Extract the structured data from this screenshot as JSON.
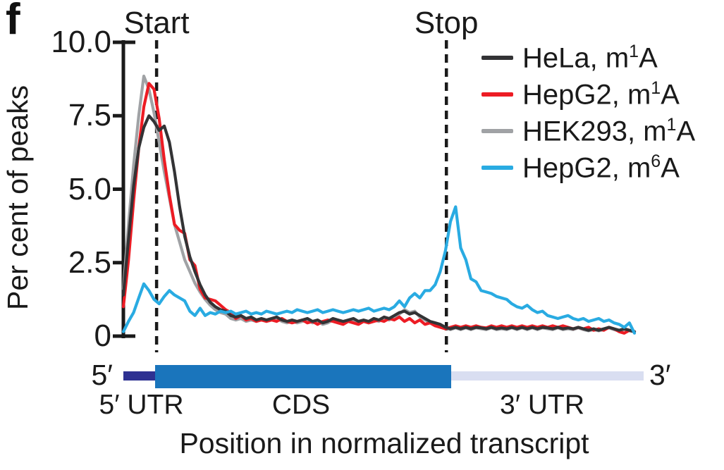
{
  "panel_label": "f",
  "chart_data": {
    "type": "line",
    "title": "",
    "xlabel": "Position in normalized transcript",
    "ylabel": "Per cent of peaks",
    "ylim": [
      0,
      10
    ],
    "yticks": [
      "10.0",
      "7.5",
      "5.0",
      "2.5",
      "0"
    ],
    "ytick_values": [
      10,
      7.5,
      5,
      2.5,
      0
    ],
    "x_start": 0,
    "x_end": 100,
    "grid": false,
    "legend_position": "top-right",
    "axis_color": "#1a1a1a",
    "annotations": [
      {
        "label": "Start",
        "x": 6.5
      },
      {
        "label": "Stop",
        "x": 63.2
      }
    ],
    "legend": [
      {
        "prefix": "HeLa, m",
        "sup": "1",
        "suffix": "A",
        "color": "#333335"
      },
      {
        "prefix": "HepG2, m",
        "sup": "1",
        "suffix": "A",
        "color": "#ed1c24"
      },
      {
        "prefix": "HEK293, m",
        "sup": "1",
        "suffix": "A",
        "color": "#a0a2a5"
      },
      {
        "prefix": "HepG2, m",
        "sup": "6",
        "suffix": "A",
        "color": "#29abe2"
      }
    ],
    "series": [
      {
        "name": "HeLa, m1A",
        "color": "#333335",
        "values": [
          1.4,
          3.3,
          5.1,
          6.4,
          7.1,
          7.5,
          7.3,
          7.0,
          7.15,
          6.6,
          5.6,
          4.4,
          3.4,
          2.7,
          2.2,
          1.75,
          1.4,
          1.15,
          1.0,
          0.9,
          0.85,
          0.7,
          0.65,
          0.7,
          0.6,
          0.65,
          0.55,
          0.6,
          0.55,
          0.6,
          0.65,
          0.55,
          0.5,
          0.55,
          0.5,
          0.55,
          0.6,
          0.5,
          0.55,
          0.45,
          0.5,
          0.6,
          0.55,
          0.5,
          0.55,
          0.6,
          0.5,
          0.55,
          0.5,
          0.6,
          0.55,
          0.65,
          0.6,
          0.7,
          0.8,
          0.85,
          0.75,
          0.8,
          0.7,
          0.6,
          0.5,
          0.45,
          0.4,
          0.3,
          0.25,
          0.3,
          0.25,
          0.3,
          0.25,
          0.3,
          0.28,
          0.25,
          0.3,
          0.25,
          0.28,
          0.25,
          0.3,
          0.25,
          0.3,
          0.25,
          0.3,
          0.25,
          0.3,
          0.28,
          0.25,
          0.3,
          0.25,
          0.28,
          0.25,
          0.3,
          0.25,
          0.2,
          0.25,
          0.2,
          0.25,
          0.3,
          0.25,
          0.2,
          0.25,
          0.2,
          0.15
        ]
      },
      {
        "name": "HepG2, m1A",
        "color": "#ed1c24",
        "values": [
          1.0,
          2.6,
          4.6,
          6.4,
          7.8,
          8.6,
          8.4,
          7.4,
          6.0,
          4.8,
          3.8,
          3.6,
          3.5,
          2.6,
          2.4,
          1.6,
          1.3,
          1.25,
          1.2,
          1.05,
          0.9,
          0.8,
          0.6,
          0.7,
          0.55,
          0.6,
          0.5,
          0.55,
          0.5,
          0.55,
          0.5,
          0.6,
          0.5,
          0.45,
          0.5,
          0.55,
          0.45,
          0.5,
          0.4,
          0.5,
          0.55,
          0.5,
          0.45,
          0.4,
          0.5,
          0.45,
          0.4,
          0.5,
          0.45,
          0.5,
          0.55,
          0.5,
          0.6,
          0.55,
          0.65,
          0.5,
          0.6,
          0.45,
          0.55,
          0.4,
          0.45,
          0.35,
          0.3,
          0.25,
          0.3,
          0.35,
          0.3,
          0.35,
          0.3,
          0.35,
          0.3,
          0.28,
          0.35,
          0.3,
          0.35,
          0.3,
          0.35,
          0.3,
          0.35,
          0.3,
          0.35,
          0.3,
          0.35,
          0.3,
          0.35,
          0.3,
          0.35,
          0.3,
          0.25,
          0.3,
          0.25,
          0.3,
          0.2,
          0.25,
          0.2,
          0.3,
          0.25,
          0.15,
          0.1,
          0.2,
          0.15
        ]
      },
      {
        "name": "HEK293, m1A",
        "color": "#a0a2a5",
        "values": [
          1.6,
          3.8,
          5.8,
          7.5,
          8.85,
          8.4,
          7.6,
          6.6,
          5.6,
          4.7,
          3.8,
          3.2,
          2.6,
          2.2,
          1.8,
          1.5,
          1.25,
          1.05,
          0.9,
          0.8,
          0.75,
          0.6,
          0.55,
          0.6,
          0.5,
          0.55,
          0.5,
          0.55,
          0.5,
          0.55,
          0.6,
          0.5,
          0.45,
          0.5,
          0.45,
          0.5,
          0.55,
          0.45,
          0.5,
          0.4,
          0.45,
          0.55,
          0.5,
          0.45,
          0.5,
          0.55,
          0.45,
          0.5,
          0.45,
          0.55,
          0.5,
          0.6,
          0.55,
          0.65,
          0.75,
          0.9,
          0.8,
          0.85,
          0.65,
          0.55,
          0.45,
          0.4,
          0.35,
          0.28,
          0.22,
          0.28,
          0.22,
          0.28,
          0.22,
          0.28,
          0.25,
          0.22,
          0.28,
          0.22,
          0.25,
          0.22,
          0.28,
          0.22,
          0.28,
          0.22,
          0.28,
          0.22,
          0.28,
          0.25,
          0.22,
          0.28,
          0.22,
          0.25,
          0.22,
          0.28,
          0.22,
          0.18,
          0.22,
          0.18,
          0.22,
          0.28,
          0.22,
          0.18,
          0.22,
          0.18,
          0.15
        ]
      },
      {
        "name": "HepG2, m6A",
        "color": "#29abe2",
        "values": [
          0.15,
          0.5,
          0.8,
          1.3,
          1.78,
          1.55,
          1.25,
          1.1,
          1.35,
          1.55,
          1.4,
          1.3,
          1.2,
          0.85,
          0.7,
          0.95,
          0.7,
          0.8,
          0.75,
          0.85,
          0.8,
          0.85,
          0.75,
          0.8,
          0.85,
          0.75,
          0.8,
          0.75,
          0.85,
          0.8,
          0.75,
          0.8,
          0.85,
          0.8,
          0.9,
          0.85,
          0.8,
          0.85,
          0.9,
          0.8,
          0.85,
          0.9,
          0.85,
          0.8,
          0.85,
          0.9,
          0.85,
          0.9,
          0.95,
          0.85,
          0.9,
          0.95,
          0.9,
          1.0,
          1.2,
          1.0,
          1.3,
          1.45,
          1.3,
          1.55,
          1.55,
          1.75,
          2.2,
          2.9,
          3.9,
          4.4,
          3.0,
          2.6,
          1.95,
          1.85,
          1.55,
          1.5,
          1.45,
          1.35,
          1.3,
          1.25,
          1.1,
          1.0,
          0.95,
          1.05,
          0.9,
          0.8,
          0.85,
          0.7,
          0.65,
          0.6,
          0.65,
          0.7,
          0.6,
          0.55,
          0.6,
          0.5,
          0.55,
          0.6,
          0.5,
          0.55,
          0.45,
          0.4,
          0.3,
          0.45,
          0.1
        ]
      }
    ]
  },
  "transcript_diagram": {
    "left_end_label": "5′",
    "right_end_label": "3′",
    "segments": [
      {
        "label": "5′ UTR",
        "color": "#2e3192",
        "start": 0,
        "end": 6.2,
        "thick": false
      },
      {
        "label": "CDS",
        "color": "#1a75bc",
        "start": 6.2,
        "end": 64.1,
        "thick": true
      },
      {
        "label": "3′ UTR",
        "color": "#d9def1",
        "start": 64.1,
        "end": 101.8,
        "thick": false
      }
    ]
  }
}
